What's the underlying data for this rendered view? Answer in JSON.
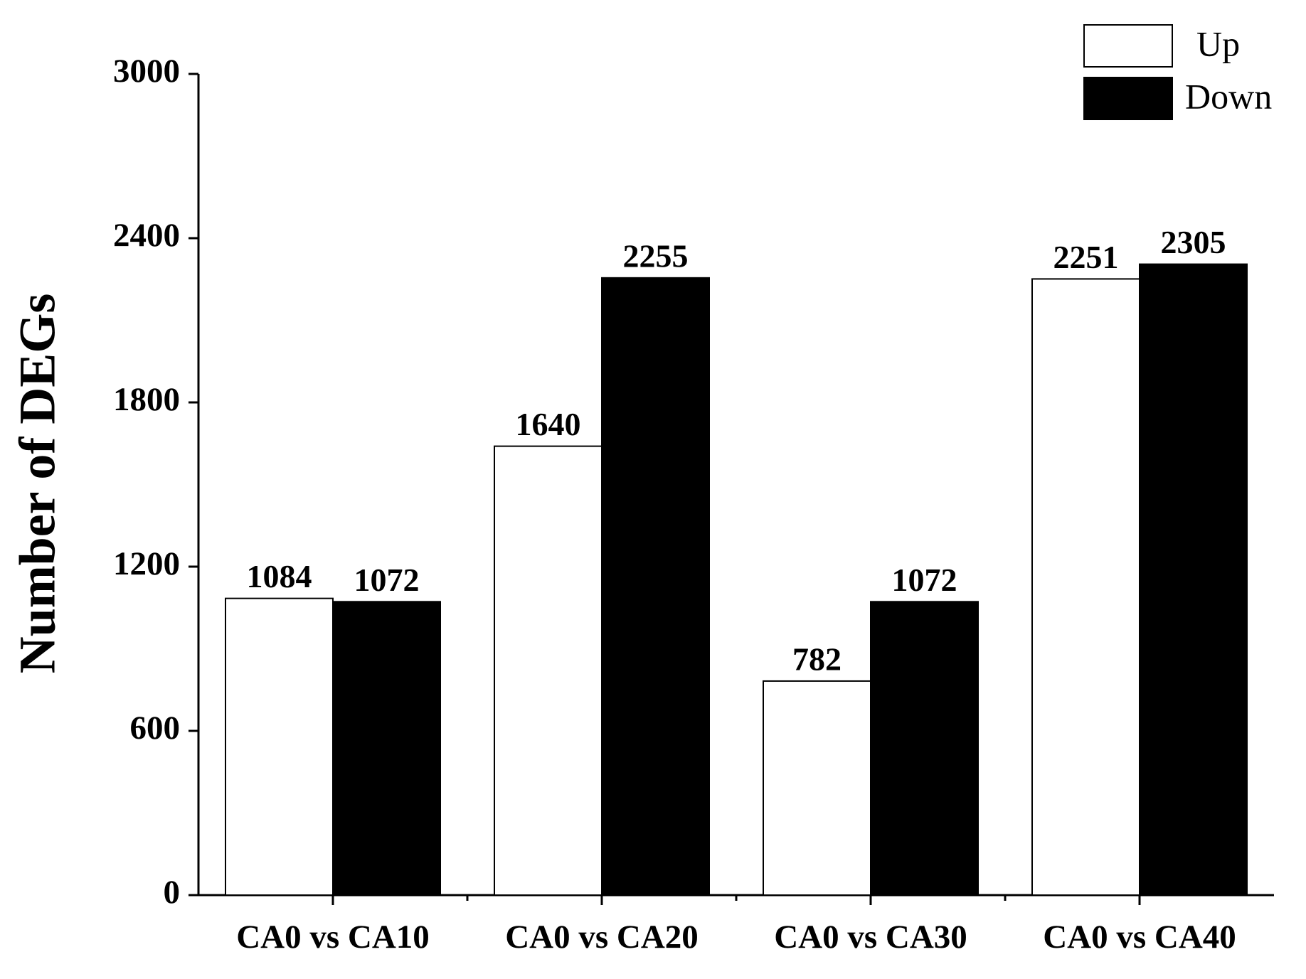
{
  "chart_data": {
    "type": "bar",
    "y_label": "Number of DEGs",
    "categories": [
      "CA0 vs CA10",
      "CA0 vs CA20",
      "CA0 vs CA30",
      "CA0 vs CA40"
    ],
    "series": [
      {
        "name": "Up",
        "color": "#ffffff",
        "values": [
          1084,
          1640,
          782,
          2251
        ]
      },
      {
        "name": "Down",
        "color": "#000000",
        "values": [
          1072,
          2255,
          1072,
          2305
        ]
      }
    ],
    "ylim": [
      0,
      3000
    ],
    "yticks": [
      0,
      600,
      1200,
      1800,
      2400,
      3000
    ],
    "grid": false,
    "legend": "top-right"
  }
}
